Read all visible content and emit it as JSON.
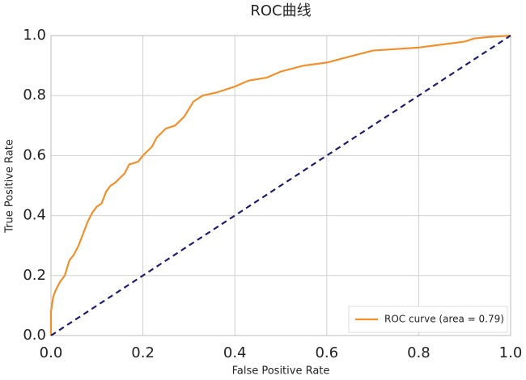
{
  "chart_data": {
    "type": "line",
    "title": "ROC曲线",
    "x_label": "False Positive Rate",
    "y_label": "True Positive Rate",
    "series": [
      {
        "name": "ROC curve (area = 0.79)",
        "color": "#f0902c",
        "style": "solid",
        "x": [
          0,
          0,
          0.005,
          0.01,
          0.02,
          0.03,
          0.04,
          0.05,
          0.06,
          0.07,
          0.08,
          0.09,
          0.1,
          0.11,
          0.12,
          0.13,
          0.14,
          0.16,
          0.17,
          0.19,
          0.2,
          0.22,
          0.23,
          0.25,
          0.27,
          0.29,
          0.31,
          0.33,
          0.36,
          0.4,
          0.43,
          0.47,
          0.5,
          0.55,
          0.6,
          0.65,
          0.7,
          0.75,
          0.8,
          0.85,
          0.9,
          0.92,
          0.95,
          1
        ],
        "values": [
          0,
          0.08,
          0.13,
          0.15,
          0.18,
          0.2,
          0.25,
          0.27,
          0.3,
          0.34,
          0.38,
          0.41,
          0.43,
          0.44,
          0.48,
          0.5,
          0.51,
          0.54,
          0.57,
          0.58,
          0.6,
          0.63,
          0.66,
          0.69,
          0.7,
          0.73,
          0.78,
          0.8,
          0.81,
          0.83,
          0.85,
          0.86,
          0.88,
          0.9,
          0.91,
          0.93,
          0.95,
          0.955,
          0.96,
          0.97,
          0.98,
          0.99,
          0.995,
          1
        ]
      },
      {
        "color": "#1c1c6e",
        "style": "dashed",
        "x": [
          0,
          1
        ],
        "values": [
          0,
          1
        ]
      }
    ],
    "xlim": [
      0,
      1
    ],
    "ylim": [
      0,
      1
    ],
    "xticks": [
      {
        "value": 0,
        "label": "0.0"
      },
      0.2,
      0.4,
      0.6,
      0.8,
      {
        "value": 1,
        "label": "1.0"
      }
    ],
    "yticks": [
      {
        "value": 0,
        "label": "0.0"
      },
      0.2,
      0.4,
      0.6,
      0.8,
      {
        "value": 1,
        "label": "1.0"
      }
    ],
    "grid": true,
    "legend": "lower right"
  }
}
